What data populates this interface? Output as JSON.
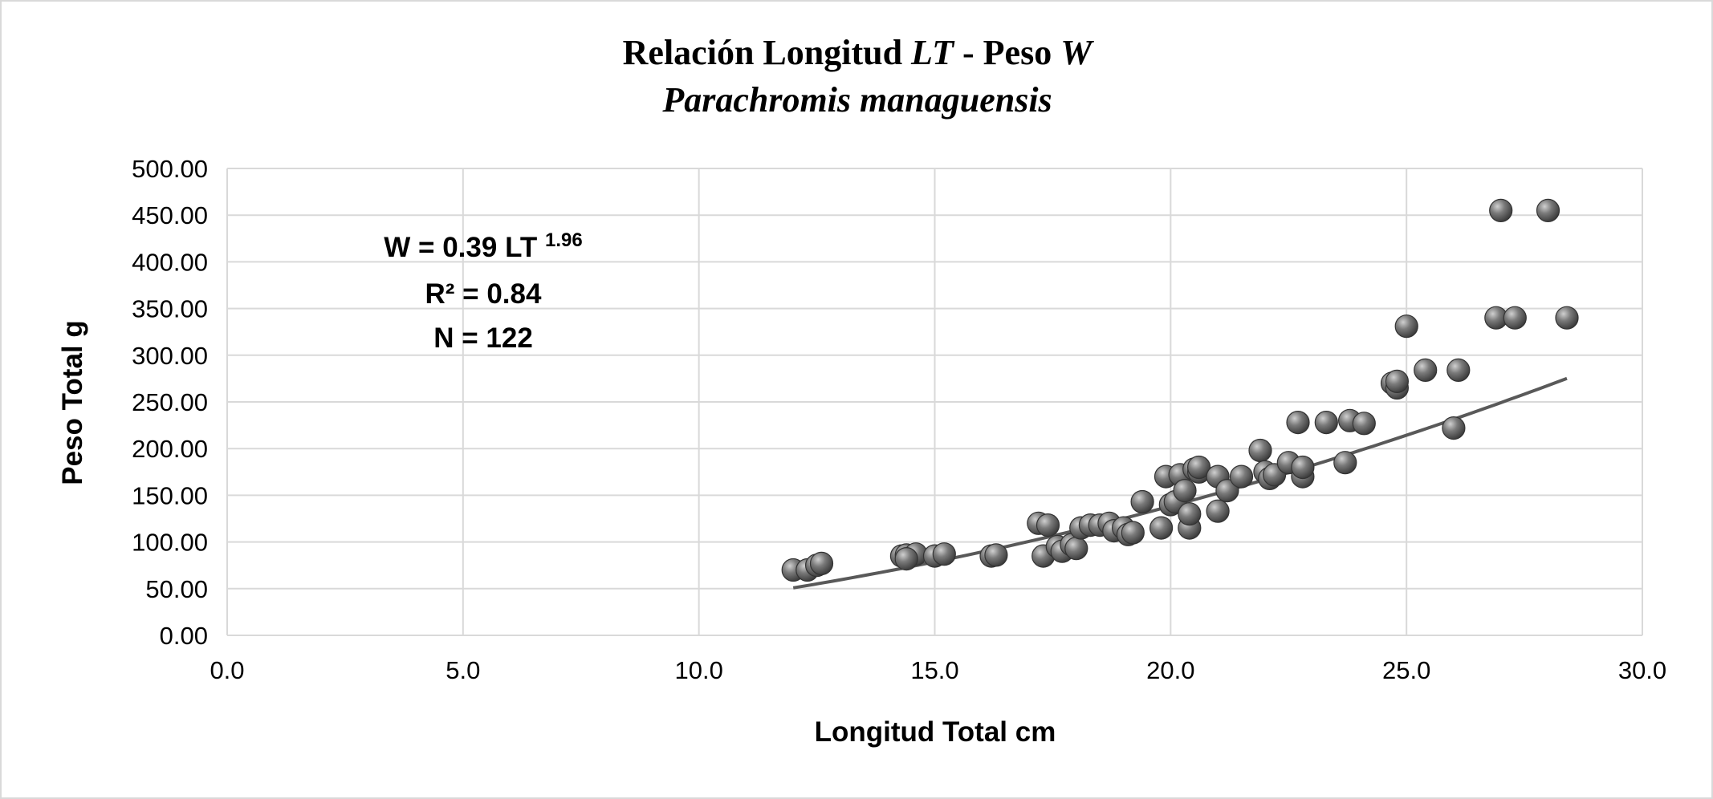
{
  "chart_data": {
    "type": "scatter",
    "title": {
      "line1_text": "Relación Longitud ",
      "line1_var1": "LT",
      "line1_sep": " - Peso ",
      "line1_var2": "W",
      "line2": "Parachromis managuensis"
    },
    "xlabel": "Longitud Total cm",
    "ylabel": "Peso Total g",
    "xlim": [
      0,
      30
    ],
    "ylim": [
      0,
      500
    ],
    "x_ticks": [
      "0.0",
      "5.0",
      "10.0",
      "15.0",
      "20.0",
      "25.0",
      "30.0"
    ],
    "y_ticks": [
      "0.00",
      "50.00",
      "100.00",
      "150.00",
      "200.00",
      "250.00",
      "300.00",
      "350.00",
      "400.00",
      "450.00",
      "500.00"
    ],
    "grid": true,
    "annotation": {
      "equation": "W = 0.39 LT",
      "exponent": "1.96",
      "r2": "R² = 0.84",
      "n": "N = 122"
    },
    "trendline": {
      "type": "power",
      "a": 0.39,
      "b": 1.96,
      "x_range": [
        12.0,
        28.4
      ]
    },
    "colors": {
      "marker": "#5a5a5a",
      "marker_highlight": "#d0d0d0",
      "trendline": "#595959",
      "grid": "#d9d9d9"
    },
    "series": [
      {
        "name": "Peso",
        "points": [
          [
            12.0,
            70
          ],
          [
            12.3,
            70
          ],
          [
            12.5,
            75
          ],
          [
            12.6,
            77
          ],
          [
            14.3,
            85
          ],
          [
            14.4,
            86
          ],
          [
            14.6,
            87
          ],
          [
            14.4,
            82
          ],
          [
            15.0,
            85
          ],
          [
            15.2,
            87
          ],
          [
            16.2,
            85
          ],
          [
            16.3,
            86
          ],
          [
            17.2,
            120
          ],
          [
            17.4,
            118
          ],
          [
            17.3,
            85
          ],
          [
            17.6,
            95
          ],
          [
            17.7,
            90
          ],
          [
            17.9,
            97
          ],
          [
            18.0,
            93
          ],
          [
            18.1,
            115
          ],
          [
            18.3,
            118
          ],
          [
            18.5,
            118
          ],
          [
            18.7,
            120
          ],
          [
            18.8,
            112
          ],
          [
            19.0,
            115
          ],
          [
            19.1,
            108
          ],
          [
            19.2,
            110
          ],
          [
            19.4,
            143
          ],
          [
            19.8,
            115
          ],
          [
            19.9,
            170
          ],
          [
            20.0,
            140
          ],
          [
            20.1,
            143
          ],
          [
            20.2,
            172
          ],
          [
            20.3,
            155
          ],
          [
            20.4,
            115
          ],
          [
            20.4,
            130
          ],
          [
            20.5,
            178
          ],
          [
            20.6,
            175
          ],
          [
            20.6,
            180
          ],
          [
            21.0,
            170
          ],
          [
            21.0,
            133
          ],
          [
            21.2,
            155
          ],
          [
            21.5,
            170
          ],
          [
            21.9,
            198
          ],
          [
            22.0,
            175
          ],
          [
            22.1,
            168
          ],
          [
            22.2,
            172
          ],
          [
            22.5,
            185
          ],
          [
            22.7,
            228
          ],
          [
            22.8,
            170
          ],
          [
            22.8,
            180
          ],
          [
            23.3,
            228
          ],
          [
            23.7,
            185
          ],
          [
            23.8,
            230
          ],
          [
            24.1,
            227
          ],
          [
            24.7,
            270
          ],
          [
            24.8,
            265
          ],
          [
            24.8,
            272
          ],
          [
            25.0,
            331
          ],
          [
            25.4,
            284
          ],
          [
            26.0,
            222
          ],
          [
            26.1,
            284
          ],
          [
            26.9,
            340
          ],
          [
            27.0,
            455
          ],
          [
            27.3,
            340
          ],
          [
            28.0,
            455
          ],
          [
            28.4,
            340
          ]
        ]
      }
    ]
  }
}
